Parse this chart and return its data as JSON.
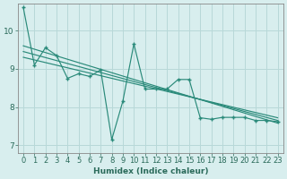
{
  "xlabel": "Humidex (Indice chaleur)",
  "background_color": "#d8eeee",
  "grid_color": "#b8d8d8",
  "line_color": "#2a8a7a",
  "xlim": [
    -0.5,
    23.5
  ],
  "ylim": [
    6.8,
    10.7
  ],
  "yticks": [
    7,
    8,
    9,
    10
  ],
  "xticks": [
    0,
    1,
    2,
    3,
    4,
    5,
    6,
    7,
    8,
    9,
    10,
    11,
    12,
    13,
    14,
    15,
    16,
    17,
    18,
    19,
    20,
    21,
    22,
    23
  ],
  "series": [
    10.6,
    9.1,
    9.55,
    9.35,
    8.75,
    8.87,
    8.8,
    8.97,
    7.15,
    8.15,
    9.65,
    8.47,
    8.47,
    8.47,
    8.72,
    8.72,
    7.72,
    7.68,
    7.73,
    7.73,
    7.73,
    7.65,
    7.65,
    7.62
  ],
  "trend_lines": [
    {
      "x_start": 0,
      "y_start": 9.6,
      "x_end": 23,
      "y_end": 7.58
    },
    {
      "x_start": 0,
      "y_start": 9.45,
      "x_end": 23,
      "y_end": 7.65
    },
    {
      "x_start": 0,
      "y_start": 9.3,
      "x_end": 23,
      "y_end": 7.72
    }
  ],
  "spine_color": "#888888",
  "tick_color": "#2a6a5a",
  "xlabel_color": "#2a6a5a",
  "xlabel_fontsize": 6.5,
  "tick_fontsize": 6.0,
  "ytick_fontsize": 6.5
}
